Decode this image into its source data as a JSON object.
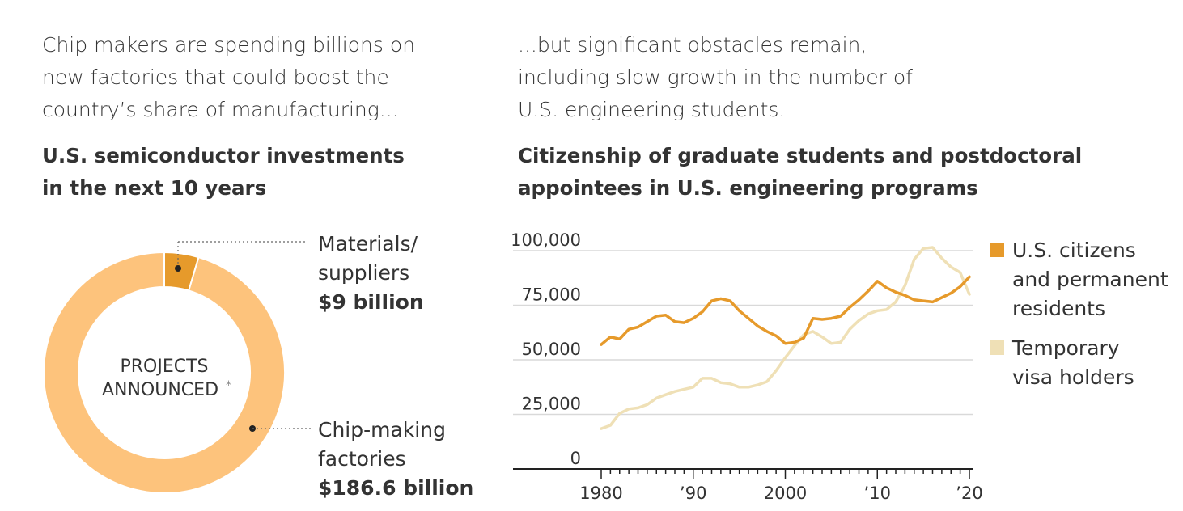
{
  "intro_left": [
    "Chip makers are spending billions on",
    "new factories that could boost the",
    "country’s share of manufacturing..."
  ],
  "intro_right": [
    "...but significant obstacles remain,",
    "including slow growth in the number of",
    "U.S. engineering students."
  ],
  "colors": {
    "light": "#fdc37c",
    "dark": "#e69a2b",
    "pale": "#efe0b6",
    "text": "#333333",
    "grid": "#d9d9d9"
  },
  "chart_data": [
    {
      "type": "pie",
      "title": "U.S. semiconductor investments in the next 10 years",
      "title_lines": [
        "U.S. semiconductor investments",
        "in the next 10 years"
      ],
      "center_label": [
        "PROJECTS",
        "ANNOUNCED"
      ],
      "center_mark": "*",
      "unit": "billion $",
      "slices": [
        {
          "label": [
            "Materials/",
            "suppliers"
          ],
          "value_label": "$9 billion",
          "value": 9,
          "color": "#e69a2b"
        },
        {
          "label": [
            "Chip-making",
            "factories"
          ],
          "value_label": "$186.6 billion",
          "value": 186.6,
          "color": "#fdc37c"
        }
      ]
    },
    {
      "type": "line",
      "title": "Citizenship of graduate students and postdoctoral appointees in U.S. engineering programs",
      "title_lines": [
        "Citizenship of graduate students and postdoctoral",
        "appointees in U.S. engineering programs"
      ],
      "x_ticks": [
        1980,
        1990,
        2000,
        2010,
        2020
      ],
      "x_tick_labels": [
        "1980",
        "’90",
        "2000",
        "’10",
        "’20"
      ],
      "xlim": [
        1980,
        2020
      ],
      "y_ticks": [
        0,
        25000,
        50000,
        75000,
        100000
      ],
      "y_tick_labels": [
        "0",
        "25,000",
        "50,000",
        "75,000",
        "100,000"
      ],
      "ylim": [
        0,
        100000
      ],
      "grid": true,
      "legend_position": "right",
      "x": [
        1980,
        1981,
        1982,
        1983,
        1984,
        1985,
        1986,
        1987,
        1988,
        1989,
        1990,
        1991,
        1992,
        1993,
        1994,
        1995,
        1996,
        1997,
        1998,
        1999,
        2000,
        2001,
        2002,
        2003,
        2004,
        2005,
        2006,
        2007,
        2008,
        2009,
        2010,
        2011,
        2012,
        2013,
        2014,
        2015,
        2016,
        2017,
        2018,
        2019,
        2020
      ],
      "series": [
        {
          "name": "U.S. citizens and permanent residents",
          "legend_lines": [
            "U.S. citizens",
            "and permanent",
            "residents"
          ],
          "color": "#e69a2b",
          "values": [
            57000,
            60500,
            59500,
            64000,
            65000,
            67500,
            70000,
            70500,
            67500,
            67000,
            69000,
            72000,
            77000,
            78000,
            77000,
            72500,
            69000,
            65500,
            63000,
            61000,
            57500,
            58000,
            60000,
            69000,
            68500,
            69000,
            70000,
            74000,
            77500,
            81500,
            86000,
            83000,
            81000,
            79500,
            77500,
            77000,
            76500,
            78500,
            80500,
            83500,
            88000
          ]
        },
        {
          "name": "Temporary visa holders",
          "legend_lines": [
            "Temporary",
            "visa holders"
          ],
          "color": "#efe0b6",
          "values": [
            18500,
            20000,
            25500,
            27500,
            28000,
            29500,
            32500,
            34000,
            35500,
            36500,
            37500,
            41500,
            41500,
            39500,
            39000,
            37500,
            37500,
            38500,
            40000,
            45000,
            51000,
            56500,
            61500,
            63000,
            60500,
            57500,
            58000,
            64000,
            68000,
            71000,
            72500,
            73000,
            76500,
            84000,
            96000,
            101000,
            101500,
            96500,
            92500,
            90000,
            80000
          ]
        }
      ]
    }
  ]
}
